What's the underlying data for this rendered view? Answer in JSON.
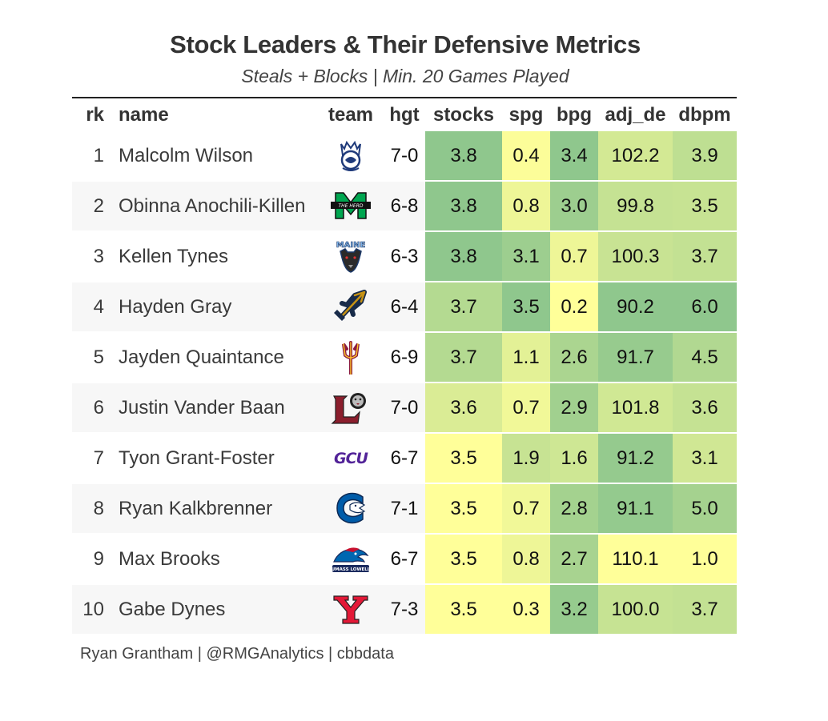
{
  "title": "Stock Leaders & Their Defensive Metrics",
  "subtitle": "Steals + Blocks | Min. 20 Games Played",
  "footer": "Ryan Grantham | @RMGAnalytics | cbbdata",
  "columns": [
    "rk",
    "name",
    "team",
    "hgt",
    "stocks",
    "spg",
    "bpg",
    "adj_de",
    "dbpm"
  ],
  "chart_data": {
    "type": "table",
    "title": "Stock Leaders & Their Defensive Metrics",
    "subtitle": "Steals + Blocks | Min. 20 Games Played",
    "columns": [
      "rk",
      "name",
      "team",
      "hgt",
      "stocks",
      "spg",
      "bpg",
      "adj_de",
      "dbpm"
    ],
    "rows": [
      {
        "rk": "1",
        "name": "Malcolm Wilson",
        "team_logo": "queens-royals-logo-icon",
        "hgt": "7-0",
        "stocks": "3.8",
        "spg": "0.4",
        "bpg": "3.4",
        "adj_de": "102.2",
        "dbpm": "3.9"
      },
      {
        "rk": "2",
        "name": "Obinna Anochili-Killen",
        "team_logo": "marshall-thundering-herd-logo-icon",
        "hgt": "6-8",
        "stocks": "3.8",
        "spg": "0.8",
        "bpg": "3.0",
        "adj_de": "99.8",
        "dbpm": "3.5"
      },
      {
        "rk": "3",
        "name": "Kellen Tynes",
        "team_logo": "maine-black-bears-logo-icon",
        "hgt": "6-3",
        "stocks": "3.8",
        "spg": "3.1",
        "bpg": "0.7",
        "adj_de": "100.3",
        "dbpm": "3.7"
      },
      {
        "rk": "4",
        "name": "Hayden Gray",
        "team_logo": "uc-san-diego-trident-logo-icon",
        "hgt": "6-4",
        "stocks": "3.7",
        "spg": "3.5",
        "bpg": "0.2",
        "adj_de": "90.2",
        "dbpm": "6.0"
      },
      {
        "rk": "5",
        "name": "Jayden Quaintance",
        "team_logo": "arizona-state-pitchfork-logo-icon",
        "hgt": "6-9",
        "stocks": "3.7",
        "spg": "1.1",
        "bpg": "2.6",
        "adj_de": "91.7",
        "dbpm": "4.5"
      },
      {
        "rk": "6",
        "name": "Justin Vander Baan",
        "team_logo": "lafayette-leopards-logo-icon",
        "hgt": "7-0",
        "stocks": "3.6",
        "spg": "0.7",
        "bpg": "2.9",
        "adj_de": "101.8",
        "dbpm": "3.6"
      },
      {
        "rk": "7",
        "name": "Tyon Grant-Foster",
        "team_logo": "gcu-lopes-logo-icon",
        "hgt": "6-7",
        "stocks": "3.5",
        "spg": "1.9",
        "bpg": "1.6",
        "adj_de": "91.2",
        "dbpm": "3.1"
      },
      {
        "rk": "8",
        "name": "Ryan Kalkbrenner",
        "team_logo": "creighton-bluejays-logo-icon",
        "hgt": "7-1",
        "stocks": "3.5",
        "spg": "0.7",
        "bpg": "2.8",
        "adj_de": "91.1",
        "dbpm": "5.0"
      },
      {
        "rk": "9",
        "name": "Max Brooks",
        "team_logo": "umass-lowell-river-hawks-logo-icon",
        "hgt": "6-7",
        "stocks": "3.5",
        "spg": "0.8",
        "bpg": "2.7",
        "adj_de": "110.1",
        "dbpm": "1.0"
      },
      {
        "rk": "10",
        "name": "Gabe Dynes",
        "team_logo": "youngstown-state-logo-icon",
        "hgt": "7-3",
        "stocks": "3.5",
        "spg": "0.3",
        "bpg": "3.2",
        "adj_de": "100.0",
        "dbpm": "3.7"
      }
    ],
    "color_scale": {
      "low": "#ffff99",
      "high": "#8fc78d",
      "note": "higher is greener; adj_de lower is greener"
    }
  },
  "logo_text": {
    "marshall": "THE HERD",
    "maine": "MAINE",
    "gcu": "GCU",
    "umass_lowell": "UMASS LOWELL"
  },
  "colors": {
    "scale_low": "#ffff99",
    "scale_high": "#8fc78d",
    "stripe": "#f7f7f7",
    "text": "#333333"
  }
}
